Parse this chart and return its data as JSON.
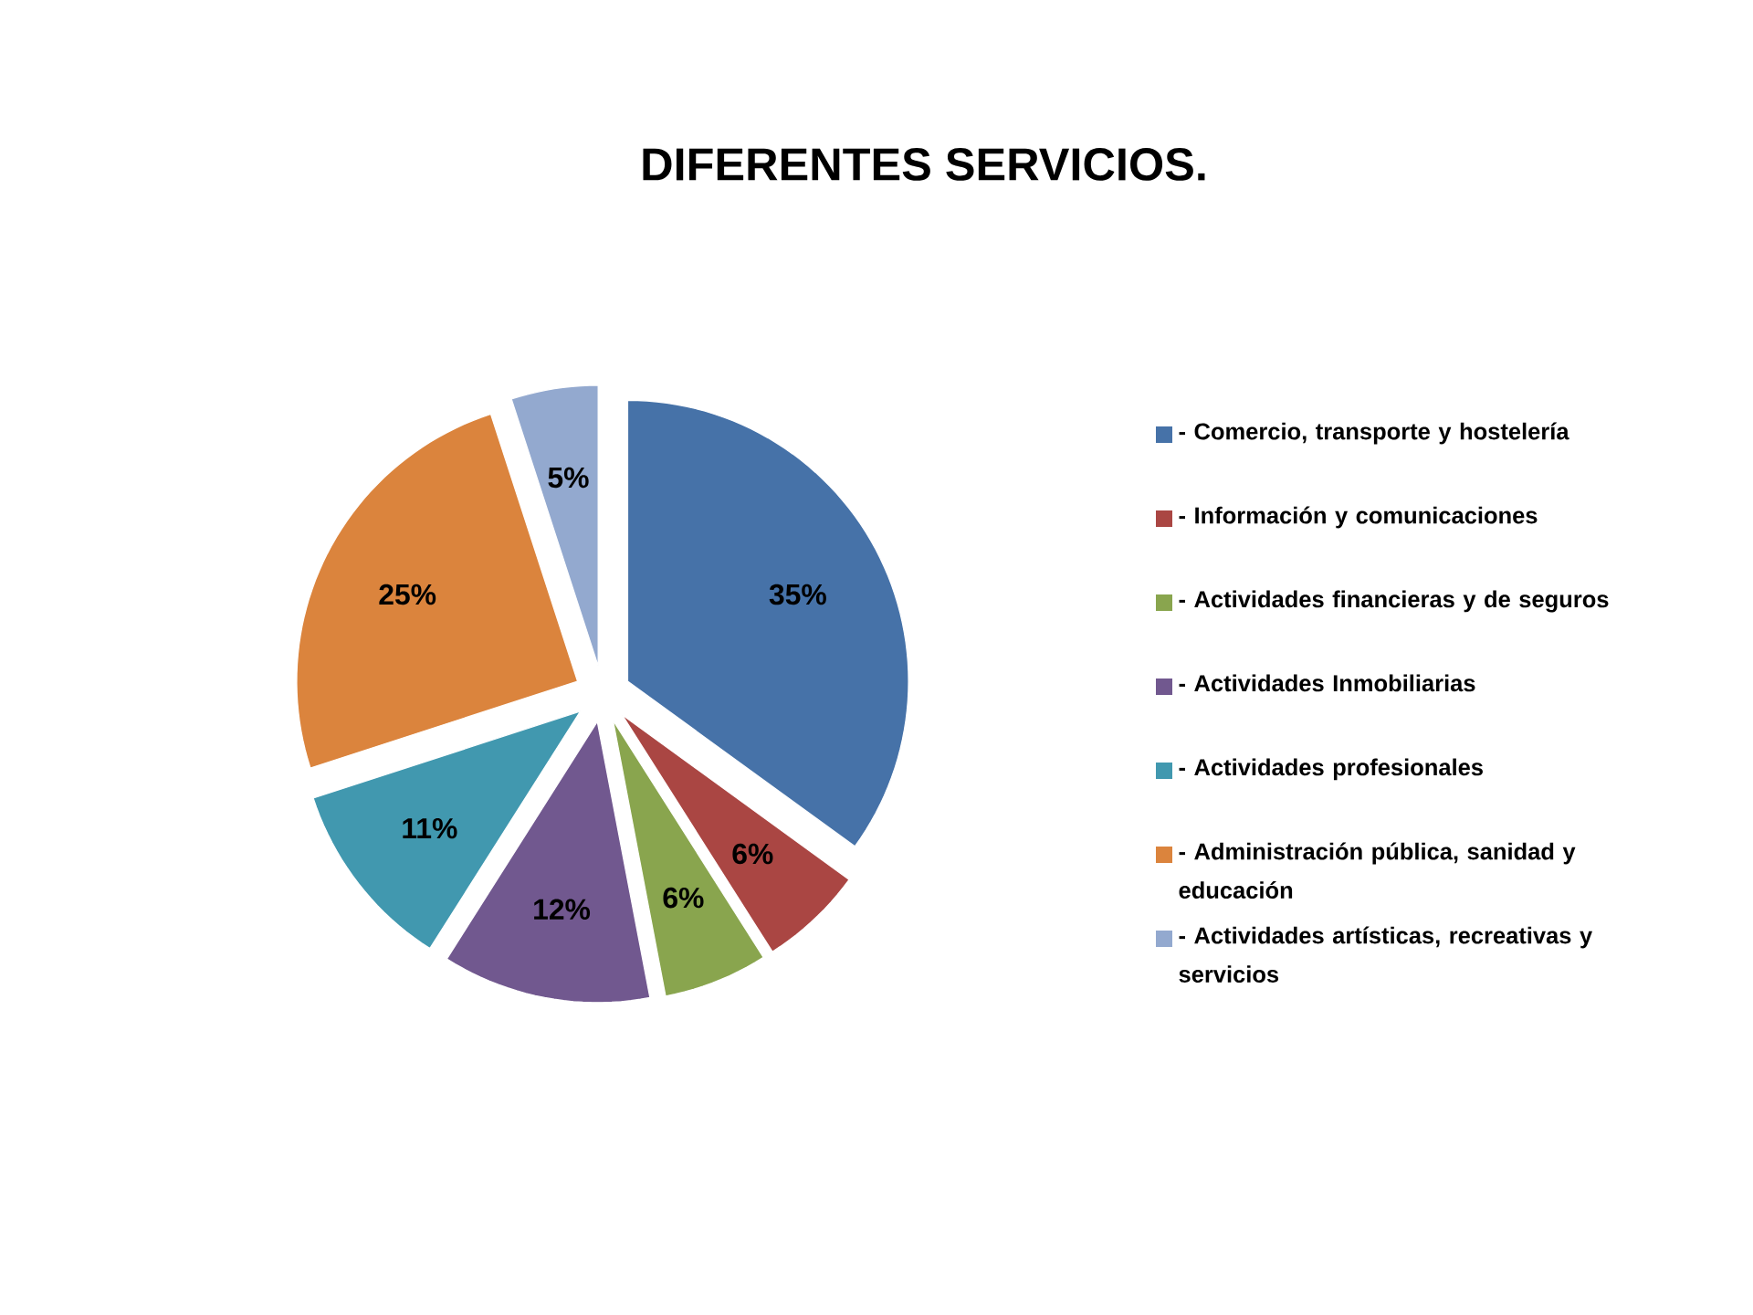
{
  "chart_data": {
    "type": "pie",
    "title": "DIFERENTES SERVICIOS.",
    "categories": [
      "- Comercio, transporte y hostelería",
      "- Información y comunicaciones",
      "- Actividades financieras y de seguros",
      "- Actividades Inmobiliarias",
      "- Actividades profesionales",
      "- Administración pública, sanidad y educación",
      "- Actividades artísticas, recreativas y servicios"
    ],
    "values": [
      35,
      6,
      6,
      12,
      11,
      25,
      5
    ],
    "value_labels": [
      "35%",
      "6%",
      "6%",
      "12%",
      "11%",
      "25%",
      "5%"
    ],
    "colors": [
      "#4672a8",
      "#aa4643",
      "#89a54e",
      "#71588f",
      "#4198af",
      "#db843d",
      "#93a9cf"
    ],
    "legend": "right"
  }
}
